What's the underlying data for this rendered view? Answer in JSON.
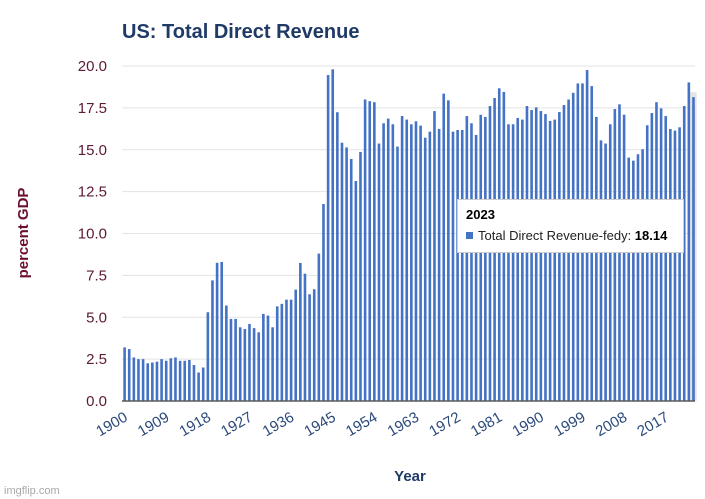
{
  "chart_data": {
    "type": "bar",
    "title": "US: Total Direct Revenue",
    "xlabel": "Year",
    "ylabel": "percent GDP",
    "ylim": [
      0,
      20
    ],
    "yticks": [
      "0.0",
      "2.5",
      "5.0",
      "7.5",
      "10.0",
      "12.5",
      "15.0",
      "17.5",
      "20.0"
    ],
    "ytick_values": [
      0,
      2.5,
      5,
      7.5,
      10,
      12.5,
      15,
      17.5,
      20
    ],
    "xticks": [
      "1900",
      "1909",
      "1918",
      "1927",
      "1936",
      "1945",
      "1954",
      "1963",
      "1972",
      "1981",
      "1990",
      "1999",
      "2008",
      "2017"
    ],
    "grid": true,
    "legend": "none",
    "bar_color": "#4472c4",
    "x_start": 1900,
    "x_end": 2023,
    "series": [
      {
        "name": "Total Direct Revenue-fedy",
        "values": [
          3.2,
          3.1,
          2.6,
          2.5,
          2.5,
          2.25,
          2.3,
          2.35,
          2.5,
          2.4,
          2.55,
          2.6,
          2.4,
          2.4,
          2.45,
          2.15,
          1.7,
          2.0,
          5.3,
          7.2,
          8.25,
          8.3,
          5.7,
          4.9,
          4.9,
          4.4,
          4.3,
          4.6,
          4.35,
          4.1,
          5.2,
          5.1,
          4.4,
          5.65,
          5.8,
          6.05,
          6.05,
          6.65,
          8.24,
          7.6,
          6.37,
          6.67,
          8.8,
          11.76,
          19.46,
          19.8,
          17.24,
          15.42,
          15.14,
          14.45,
          13.13,
          14.87,
          18.0,
          17.9,
          17.84,
          15.37,
          16.58,
          16.86,
          16.52,
          15.19,
          17.01,
          16.8,
          16.52,
          16.7,
          16.44,
          15.72,
          16.08,
          17.31,
          16.24,
          18.35,
          17.95,
          16.08,
          16.18,
          16.18,
          17.01,
          16.58,
          15.88,
          17.09,
          16.96,
          17.61,
          18.09,
          18.67,
          18.45,
          16.52,
          16.52,
          16.9,
          16.8,
          17.61,
          17.37,
          17.53,
          17.31,
          17.13,
          16.72,
          16.8,
          17.25,
          17.67,
          18.0,
          18.4,
          18.96,
          18.96,
          19.76,
          18.8,
          16.96,
          15.56,
          15.37,
          16.52,
          17.43,
          17.71,
          17.09,
          14.53,
          14.35,
          14.73,
          15.03,
          16.46,
          17.19,
          17.84,
          17.47,
          17.01,
          16.24,
          16.14,
          16.34,
          17.61,
          19.02,
          18.14
        ]
      }
    ],
    "highlighted_year": "2023",
    "tooltip": {
      "title": "2023",
      "series_label": "Total Direct Revenue-fedy: ",
      "value": "18.14",
      "marker_color": "#4472c4"
    }
  },
  "watermark": "imgflip.com"
}
